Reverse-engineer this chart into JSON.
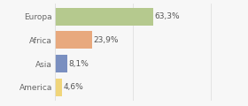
{
  "categories": [
    "Europa",
    "Africa",
    "Asia",
    "America"
  ],
  "values": [
    63.3,
    23.9,
    8.1,
    4.6
  ],
  "labels": [
    "63,3%",
    "23,9%",
    "8,1%",
    "4,6%"
  ],
  "colors": [
    "#b5c98e",
    "#e8a97e",
    "#7a8fc0",
    "#f0d57a"
  ],
  "xlim": [
    0,
    105
  ],
  "background_color": "#f7f7f7",
  "bar_height": 0.75,
  "label_fontsize": 6.5,
  "tick_fontsize": 6.5,
  "grid_color": "#e0e0e0"
}
